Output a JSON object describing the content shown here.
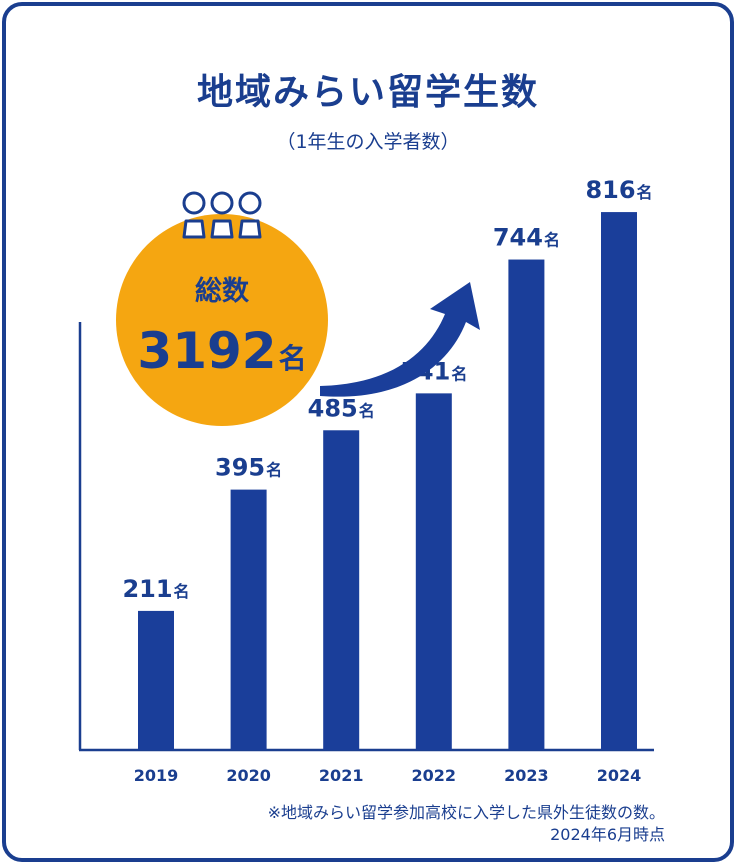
{
  "title": "地域みらい留学生数",
  "subtitle": "（1年生の入学者数）",
  "total": {
    "label": "総数",
    "value": "3192",
    "unit": "名"
  },
  "footnote": {
    "line1": "※地域みらい留学参加高校に入学した県外生徒数の数。",
    "line2": "2024年6月時点"
  },
  "colors": {
    "frame": "#1a3e8f",
    "bar": "#1a3e9a",
    "circle": "#f5a611",
    "axis": "#1a3e8f"
  },
  "chart_data": {
    "type": "bar",
    "categories": [
      "2019",
      "2020",
      "2021",
      "2022",
      "2023",
      "2024"
    ],
    "values": [
      211,
      395,
      485,
      541,
      744,
      816
    ],
    "unit": "名",
    "data_labels": [
      "211名",
      "395名",
      "485名",
      "541名",
      "744名",
      "816名"
    ],
    "ylim": [
      0,
      895
    ],
    "grid": false,
    "title": "地域みらい留学生数",
    "xlabel": "",
    "ylabel": ""
  }
}
